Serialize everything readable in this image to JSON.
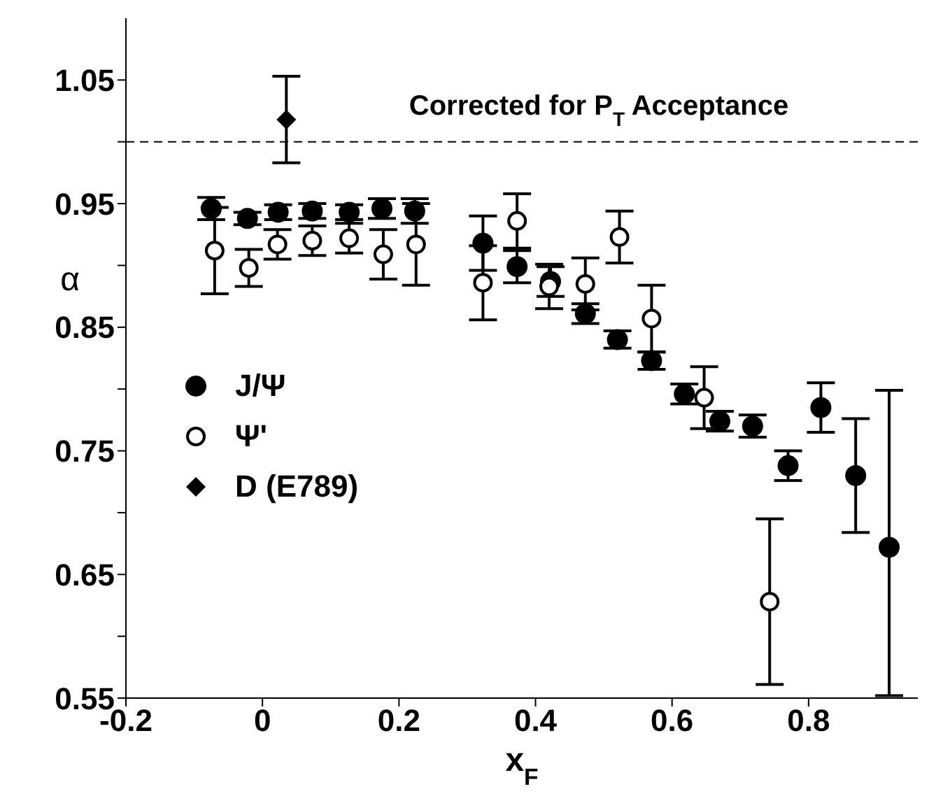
{
  "chart_data": {
    "type": "scatter",
    "xlabel": "x$_{F}$",
    "ylabel": "α",
    "annotations": [
      "Corrected for P$_{T}$ Acceptance"
    ],
    "xlim": [
      -0.2,
      0.96
    ],
    "xticks": [
      -0.2,
      0,
      0.2,
      0.4,
      0.6,
      0.8
    ],
    "ylim": [
      0.55,
      1.1
    ],
    "yticks": [
      0.55,
      {
        "value": 0.6,
        "label": null
      },
      0.65,
      {
        "value": 0.7,
        "label": null
      },
      0.75,
      {
        "value": 0.8,
        "label": null
      },
      0.85,
      {
        "value": 0.9,
        "label": null
      },
      0.95,
      {
        "value": 1.0,
        "label": null
      },
      1.05
    ],
    "grid": false,
    "legend": "left",
    "ref_lines": [
      {
        "axis": "y",
        "value": 1.0,
        "label": null,
        "line_style": "dashed",
        "color": "#000000"
      }
    ],
    "series": [
      {
        "name": "J/Ψ",
        "color": "#000000",
        "marker": "circle",
        "x": [
          -0.075,
          -0.022,
          0.023,
          0.073,
          0.127,
          0.175,
          0.223,
          0.323,
          0.373,
          0.422,
          0.473,
          0.52,
          0.57,
          0.618,
          0.67,
          0.718,
          0.77,
          0.818,
          0.869,
          0.918
        ],
        "values": [
          0.946,
          0.938,
          0.943,
          0.944,
          0.943,
          0.946,
          0.944,
          0.918,
          0.899,
          0.887,
          0.861,
          0.84,
          0.823,
          0.796,
          0.774,
          0.77,
          0.738,
          0.785,
          0.73,
          0.672
        ],
        "errors": [
          0.009,
          0.005,
          0.006,
          0.006,
          0.006,
          0.008,
          0.01,
          0.022,
          0.013,
          0.012,
          0.008,
          0.007,
          0.007,
          0.008,
          0.008,
          0.009,
          0.012,
          0.02,
          0.046,
          [
            0.552,
            0.799
          ]
        ]
      },
      {
        "name": "Ψ'",
        "color": "#000000",
        "marker": "open circle",
        "x": [
          -0.07,
          -0.02,
          0.022,
          0.073,
          0.127,
          0.177,
          0.225,
          0.323,
          0.373,
          0.42,
          0.473,
          0.523,
          0.57,
          0.647,
          0.743
        ],
        "values": [
          0.912,
          0.898,
          0.917,
          0.92,
          0.922,
          0.909,
          0.917,
          0.886,
          0.936,
          0.883,
          0.885,
          0.923,
          0.857,
          0.793,
          0.628
        ],
        "errors": [
          0.035,
          0.015,
          0.012,
          0.012,
          0.012,
          0.02,
          0.033,
          0.03,
          0.022,
          0.018,
          0.021,
          0.021,
          0.027,
          0.025,
          0.067
        ]
      },
      {
        "name": "D (E789)",
        "color": "#000000",
        "marker": "diamond",
        "x": [
          0.035
        ],
        "values": [
          1.018
        ],
        "errors": [
          0.035
        ]
      }
    ]
  }
}
